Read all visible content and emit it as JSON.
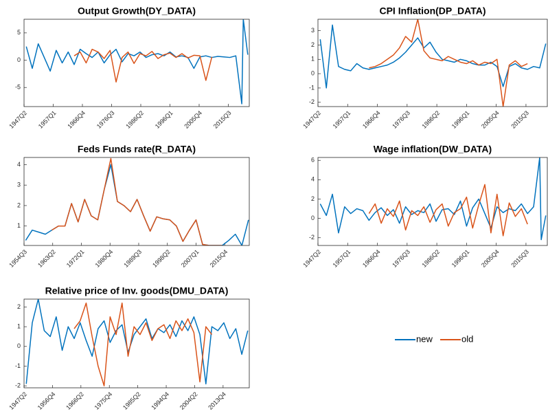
{
  "chart_data": [
    {
      "type": "line",
      "title": "Output Growth(DY_DATA)",
      "x": [
        1948,
        1950,
        1952,
        1954,
        1956,
        1958,
        1960,
        1962,
        1964,
        1966,
        1968,
        1970,
        1972,
        1974,
        1976,
        1978,
        1980,
        1982,
        1984,
        1986,
        1988,
        1990,
        1992,
        1994,
        1996,
        1998,
        2000,
        2002,
        2004,
        2006,
        2008,
        2010,
        2012,
        2014,
        2016,
        2018,
        2020,
        2020.5,
        2022
      ],
      "xlim": [
        1947.25,
        2022.5
      ],
      "xticks": [
        {
          "value": 1947.25,
          "label": "1947Q2"
        },
        {
          "value": 1957,
          "label": "1957Q1"
        },
        {
          "value": 1966.75,
          "label": "1966Q4"
        },
        {
          "value": 1976.5,
          "label": "1976Q3"
        },
        {
          "value": 1986.25,
          "label": "1986Q2"
        },
        {
          "value": 1996,
          "label": "1996Q1"
        },
        {
          "value": 2005.75,
          "label": "2005Q4"
        },
        {
          "value": 2015.5,
          "label": "2015Q3"
        }
      ],
      "ylim": [
        -8.5,
        7.5
      ],
      "yticks": [
        -5,
        0,
        5
      ],
      "series": [
        {
          "name": "new",
          "color": "#0072bd",
          "values": [
            2.5,
            -1.5,
            3,
            0.5,
            -2,
            1.8,
            -0.5,
            1.5,
            -0.8,
            2,
            1.2,
            0.5,
            1.5,
            -0.5,
            1,
            2,
            -0.3,
            1.2,
            0.8,
            1.5,
            0.5,
            1,
            1.2,
            0.8,
            1.5,
            0.6,
            0.8,
            0.5,
            -1.5,
            0.6,
            0.8,
            0.5,
            0.7,
            0.6,
            0.5,
            0.8,
            -8,
            7.5,
            1.0
          ]
        },
        {
          "name": "old",
          "color": "#d95319",
          "values": [
            null,
            null,
            null,
            null,
            null,
            null,
            null,
            null,
            0.8,
            1.5,
            -0.5,
            2,
            1.5,
            0.3,
            1.8,
            -4,
            0.5,
            1.5,
            -0.6,
            1.2,
            0.8,
            1.6,
            0.3,
            1,
            1.3,
            0.5,
            1.2,
            0.4,
            0.9,
            0.8,
            -3.7,
            0.6,
            null,
            null,
            null,
            null,
            null,
            null,
            null
          ]
        }
      ]
    },
    {
      "type": "line",
      "title": "CPI Inflation(DP_DATA)",
      "x": [
        1948,
        1950,
        1952,
        1954,
        1956,
        1958,
        1960,
        1962,
        1964,
        1966,
        1968,
        1970,
        1972,
        1974,
        1976,
        1978,
        1980,
        1982,
        1984,
        1986,
        1988,
        1990,
        1992,
        1994,
        1996,
        1998,
        2000,
        2002,
        2004,
        2006,
        2008,
        2010,
        2012,
        2014,
        2016,
        2018,
        2020,
        2022
      ],
      "xlim": [
        1947.25,
        2022.5
      ],
      "xticks": [
        {
          "value": 1947.25,
          "label": "1947Q2"
        },
        {
          "value": 1957,
          "label": "1957Q1"
        },
        {
          "value": 1966.75,
          "label": "1966Q4"
        },
        {
          "value": 1976.5,
          "label": "1976Q3"
        },
        {
          "value": 1986.25,
          "label": "1986Q2"
        },
        {
          "value": 1996,
          "label": "1996Q1"
        },
        {
          "value": 2005.75,
          "label": "2005Q4"
        },
        {
          "value": 2015.5,
          "label": "2015Q3"
        }
      ],
      "ylim": [
        -2.3,
        3.8
      ],
      "yticks": [
        -2,
        -1,
        0,
        1,
        2,
        3
      ],
      "series": [
        {
          "name": "new",
          "color": "#0072bd",
          "values": [
            2.4,
            -1,
            3.4,
            0.5,
            0.3,
            0.2,
            0.7,
            0.4,
            0.3,
            0.4,
            0.5,
            0.6,
            0.8,
            1.1,
            1.5,
            2.0,
            2.5,
            1.8,
            2.2,
            1.5,
            1.0,
            0.9,
            0.8,
            1.0,
            0.9,
            0.7,
            0.6,
            0.6,
            0.8,
            0.5,
            -0.9,
            0.5,
            0.7,
            0.4,
            0.3,
            0.5,
            0.4,
            2.1
          ]
        },
        {
          "name": "old",
          "color": "#d95319",
          "values": [
            null,
            null,
            null,
            null,
            null,
            null,
            null,
            null,
            0.4,
            0.5,
            0.7,
            1.0,
            1.3,
            1.8,
            2.6,
            2.2,
            3.8,
            1.6,
            1.1,
            1.0,
            0.9,
            1.2,
            1.0,
            0.8,
            0.7,
            0.9,
            0.6,
            0.8,
            0.7,
            1.0,
            -2.3,
            0.6,
            0.9,
            0.5,
            0.7,
            null,
            null,
            null
          ]
        }
      ]
    },
    {
      "type": "line",
      "title": "Feds Funds rate(R_DATA)",
      "x": [
        1955,
        1957,
        1959,
        1961,
        1963,
        1965,
        1967,
        1969,
        1971,
        1973,
        1975,
        1977,
        1979,
        1981,
        1983,
        1985,
        1987,
        1989,
        1991,
        1993,
        1995,
        1997,
        1999,
        2001,
        2003,
        2005,
        2007,
        2009,
        2011,
        2013,
        2015,
        2017,
        2019,
        2021,
        2023
      ],
      "xlim": [
        1954.5,
        2023.25
      ],
      "xticks": [
        {
          "value": 1954.5,
          "label": "1954Q3"
        },
        {
          "value": 1963.25,
          "label": "1963Q2"
        },
        {
          "value": 1972,
          "label": "1972Q1"
        },
        {
          "value": 1980.75,
          "label": "1980Q4"
        },
        {
          "value": 1989.5,
          "label": "1989Q3"
        },
        {
          "value": 1998.25,
          "label": "1998Q2"
        },
        {
          "value": 2007,
          "label": "2007Q1"
        },
        {
          "value": 2015.75,
          "label": "2015Q4"
        }
      ],
      "ylim": [
        0.05,
        4.35
      ],
      "yticks": [
        1,
        2,
        3,
        4
      ],
      "series": [
        {
          "name": "new",
          "color": "#0072bd",
          "values": [
            0.3,
            0.8,
            0.7,
            0.6,
            0.8,
            1.0,
            1.0,
            2.1,
            1.2,
            2.3,
            1.5,
            1.3,
            2.8,
            4.0,
            2.2,
            2.0,
            1.7,
            2.3,
            1.5,
            0.75,
            1.45,
            1.35,
            1.3,
            1.0,
            0.25,
            0.8,
            1.3,
            0.1,
            0.05,
            0.05,
            0.05,
            0.3,
            0.6,
            0.05,
            1.3
          ]
        },
        {
          "name": "old",
          "color": "#d95319",
          "values": [
            null,
            null,
            null,
            null,
            0.8,
            1.0,
            1.0,
            2.1,
            1.2,
            2.3,
            1.5,
            1.3,
            2.8,
            4.3,
            2.2,
            2.0,
            1.7,
            2.3,
            1.5,
            0.75,
            1.45,
            1.35,
            1.3,
            1.0,
            0.25,
            0.8,
            1.3,
            0.1,
            0.05,
            0.05,
            0.05,
            null,
            null,
            null,
            null
          ]
        }
      ]
    },
    {
      "type": "line",
      "title": "Wage inflation(DW_DATA)",
      "x": [
        1948,
        1950,
        1952,
        1954,
        1956,
        1958,
        1960,
        1962,
        1964,
        1966,
        1968,
        1970,
        1972,
        1974,
        1976,
        1978,
        1980,
        1982,
        1984,
        1986,
        1988,
        1990,
        1992,
        1994,
        1996,
        1998,
        2000,
        2002,
        2004,
        2006,
        2008,
        2010,
        2012,
        2014,
        2016,
        2018,
        2020,
        2020.5,
        2022
      ],
      "xlim": [
        1947.25,
        2022.5
      ],
      "xticks": [
        {
          "value": 1947.25,
          "label": "1947Q2"
        },
        {
          "value": 1957,
          "label": "1957Q1"
        },
        {
          "value": 1966.75,
          "label": "1966Q4"
        },
        {
          "value": 1976.5,
          "label": "1976Q3"
        },
        {
          "value": 1986.25,
          "label": "1986Q2"
        },
        {
          "value": 1996,
          "label": "1996Q1"
        },
        {
          "value": 2005.75,
          "label": "2005Q4"
        },
        {
          "value": 2015.5,
          "label": "2015Q3"
        }
      ],
      "ylim": [
        -2.8,
        6.3
      ],
      "yticks": [
        -2,
        0,
        2,
        4,
        6
      ],
      "series": [
        {
          "name": "new",
          "color": "#0072bd",
          "values": [
            1.5,
            0.3,
            2.5,
            -1.5,
            1.2,
            0.5,
            1.0,
            0.8,
            -0.2,
            0.6,
            1.1,
            0.3,
            0.9,
            -0.5,
            1.2,
            0.4,
            0.8,
            0.6,
            1.5,
            -0.3,
            0.9,
            1.0,
            0.4,
            1.8,
            -0.8,
            1.1,
            2.0,
            0.5,
            -1.0,
            1.2,
            0.6,
            1.0,
            0.8,
            1.5,
            0.5,
            1.2,
            6.3,
            -2.2,
            0.3
          ]
        },
        {
          "name": "old",
          "color": "#d95319",
          "values": [
            null,
            null,
            null,
            null,
            null,
            null,
            null,
            null,
            0.5,
            1.5,
            -0.5,
            1.0,
            0.2,
            1.8,
            -1.2,
            0.8,
            0.3,
            1.2,
            -0.4,
            0.9,
            1.5,
            -0.8,
            0.6,
            1.0,
            2.2,
            -1.0,
            1.4,
            3.5,
            -1.5,
            2.5,
            -1.8,
            1.6,
            0.2,
            1.0,
            -0.6,
            null,
            null,
            null,
            null
          ]
        }
      ]
    },
    {
      "type": "line",
      "title": "Relative price of Inv. goods(DMU_DATA)",
      "x": [
        1948,
        1950,
        1952,
        1954,
        1956,
        1958,
        1960,
        1962,
        1964,
        1966,
        1968,
        1970,
        1972,
        1974,
        1976,
        1978,
        1980,
        1982,
        1984,
        1986,
        1988,
        1990,
        1992,
        1994,
        1996,
        1998,
        2000,
        2002,
        2004,
        2006,
        2008,
        2010,
        2012,
        2014,
        2016,
        2018,
        2020,
        2022
      ],
      "xlim": [
        1947.25,
        2022.5
      ],
      "xticks": [
        {
          "value": 1947.25,
          "label": "1947Q2"
        },
        {
          "value": 1956.75,
          "label": "1956Q4"
        },
        {
          "value": 1966.25,
          "label": "1966Q2"
        },
        {
          "value": 1975.75,
          "label": "1975Q4"
        },
        {
          "value": 1985.25,
          "label": "1985Q2"
        },
        {
          "value": 1994.75,
          "label": "1994Q4"
        },
        {
          "value": 2004.25,
          "label": "2004Q2"
        },
        {
          "value": 2013.75,
          "label": "2013Q4"
        }
      ],
      "ylim": [
        -2.1,
        2.4
      ],
      "yticks": [
        -2,
        -1,
        0,
        1,
        2
      ],
      "series": [
        {
          "name": "new",
          "color": "#0072bd",
          "values": [
            -1.9,
            1.2,
            2.4,
            0.8,
            0.5,
            1.5,
            -0.2,
            1.0,
            0.4,
            1.2,
            0.3,
            -0.5,
            0.9,
            1.3,
            0.2,
            0.8,
            1.1,
            -0.3,
            0.6,
            1.0,
            1.4,
            0.4,
            0.9,
            0.7,
            1.1,
            0.5,
            1.3,
            0.8,
            1.5,
            0.6,
            -1.9,
            1.0,
            0.8,
            1.2,
            0.4,
            0.9,
            -0.4,
            0.8
          ]
        },
        {
          "name": "old",
          "color": "#d95319",
          "values": [
            null,
            null,
            null,
            null,
            null,
            null,
            null,
            null,
            0.9,
            1.3,
            2.2,
            0.5,
            -1.0,
            -2.0,
            1.5,
            0.6,
            2.2,
            -0.5,
            1.0,
            0.6,
            1.2,
            0.3,
            0.9,
            1.1,
            0.4,
            1.3,
            0.8,
            1.4,
            0.7,
            -1.8,
            1.0,
            0.6,
            null,
            null,
            null,
            null,
            null,
            null
          ]
        }
      ]
    }
  ]
}
